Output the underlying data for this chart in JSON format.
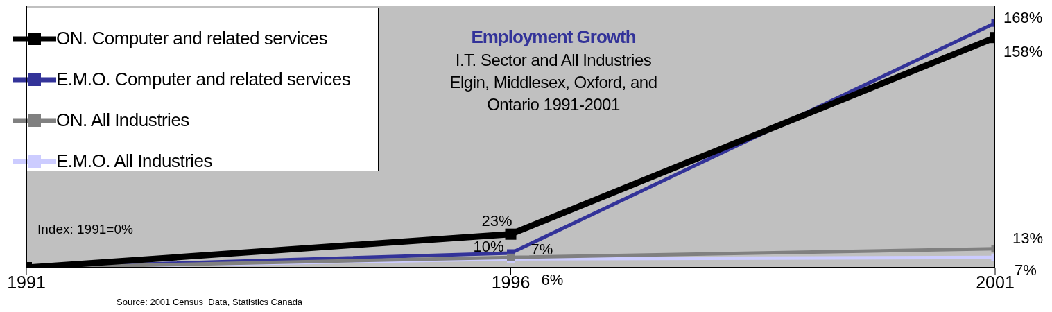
{
  "chart_data": {
    "type": "line",
    "title": "Employment Growth",
    "subtitle": "I.T. Sector and All Industries\nElgin, Middlesex, Oxford, and\nOntario 1991-2001",
    "annotations": [
      "Index: 1991=0%",
      "Source: 2001 Census  Data, Statistics Canada"
    ],
    "x": [
      1991,
      1996,
      2001
    ],
    "xlim": [
      1991,
      2001
    ],
    "xticks": [
      1991,
      1996,
      2001
    ],
    "series": [
      {
        "name": "ON. Computer and related services",
        "color": "#000000",
        "values": [
          0,
          23,
          158
        ],
        "value_labels": [
          null,
          "23%",
          "158%"
        ]
      },
      {
        "name": "E.M.O. Computer and related services",
        "color": "#333399",
        "values": [
          0,
          10,
          168
        ],
        "value_labels": [
          null,
          "10%",
          "168%"
        ]
      },
      {
        "name": "ON. All Industries",
        "color": "#808080",
        "values": [
          0,
          7,
          13
        ],
        "value_labels": [
          null,
          "7%",
          "13%"
        ]
      },
      {
        "name": "E.M.O. All Industries",
        "color": "#ccccff",
        "values": [
          0,
          6,
          7
        ],
        "value_labels": [
          null,
          "6%",
          "7%"
        ]
      }
    ],
    "marker": "square",
    "line_style": "solid",
    "grid": false,
    "legend": "top left"
  }
}
